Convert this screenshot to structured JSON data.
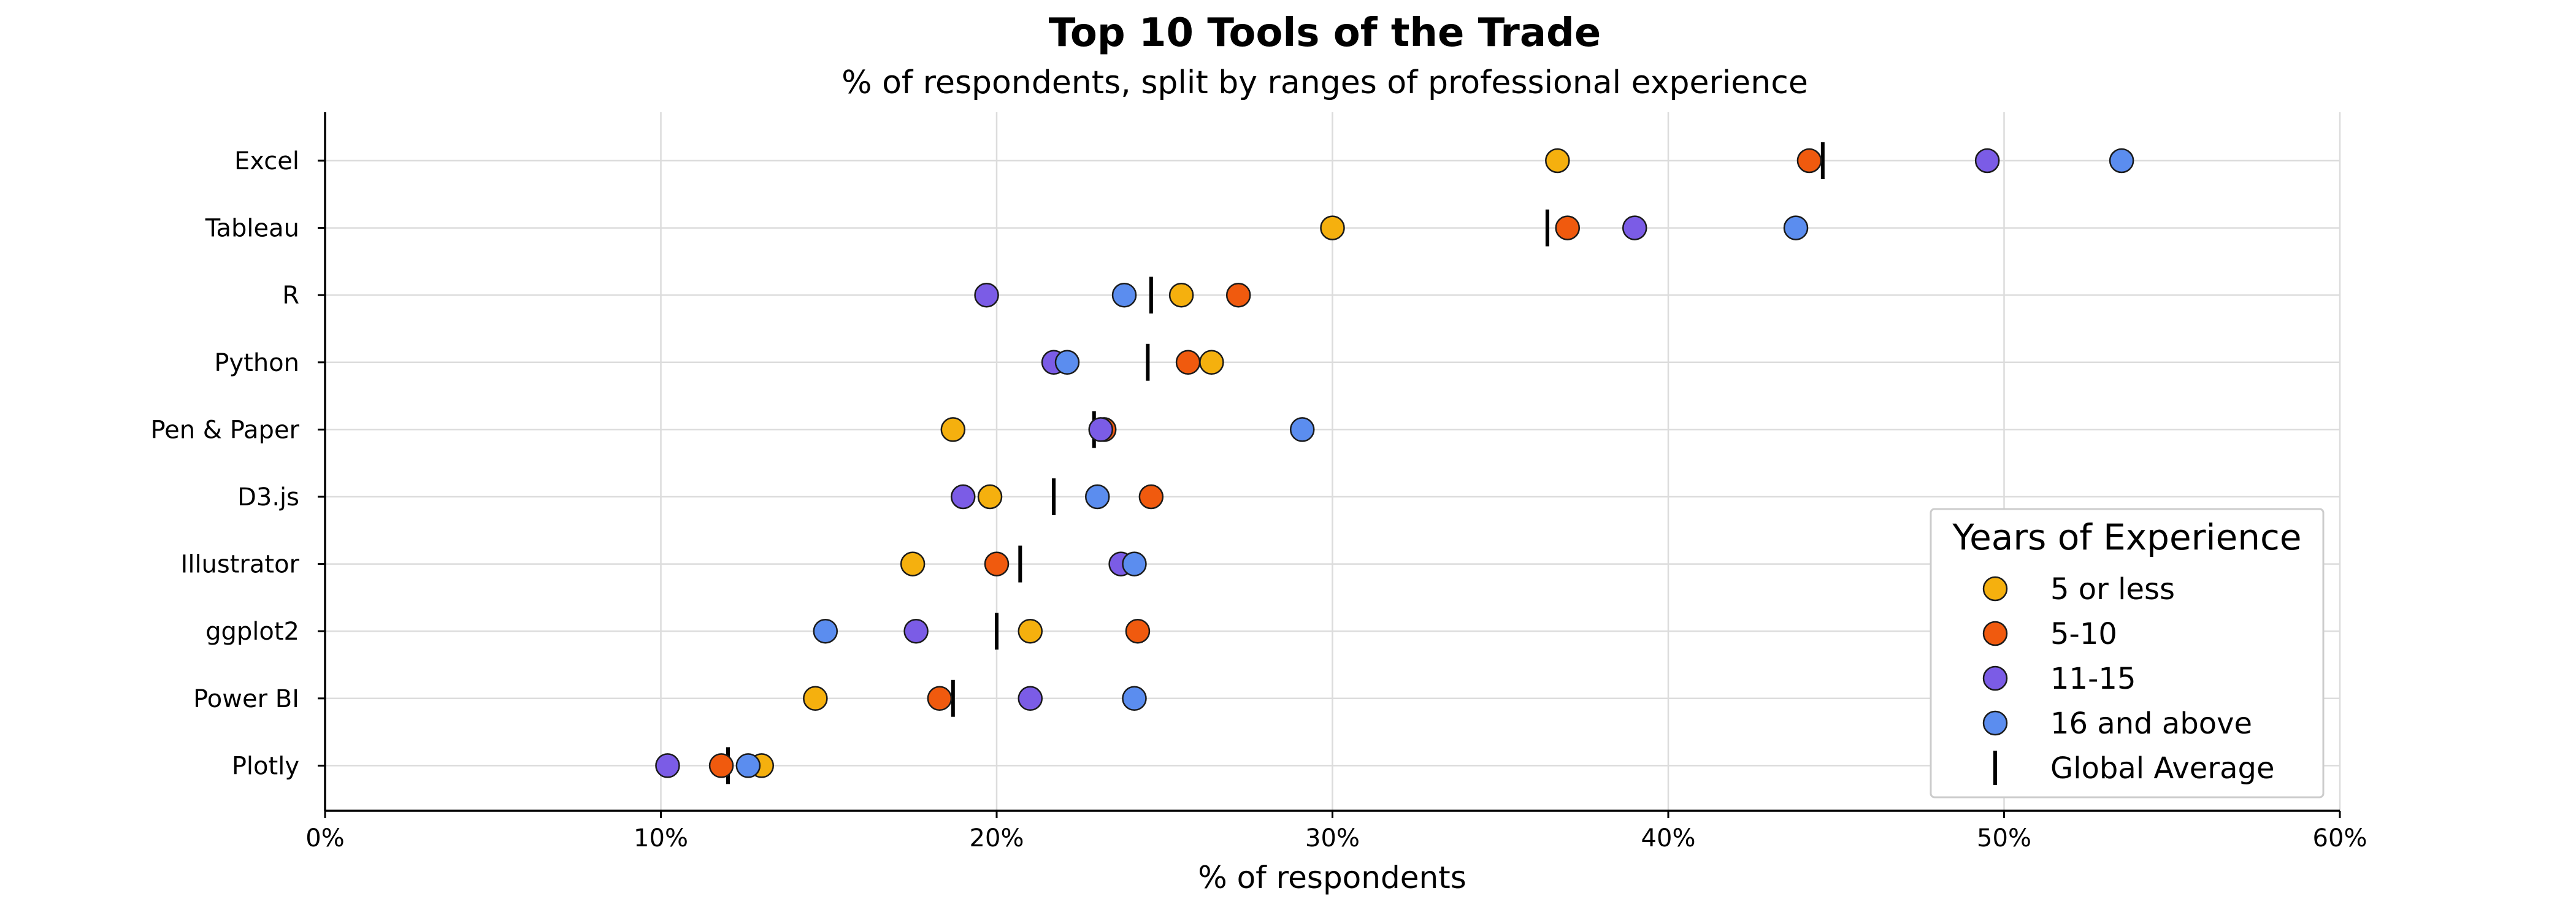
{
  "chart_data": {
    "type": "scatter",
    "title": "Top 10 Tools of the Trade",
    "subtitle": "% of respondents, split by ranges of professional experience",
    "xlabel": "% of respondents",
    "ylabel": "",
    "xlim": [
      0,
      60
    ],
    "x_ticks": [
      0,
      10,
      20,
      30,
      40,
      50,
      60
    ],
    "x_tick_labels": [
      "0%",
      "10%",
      "20%",
      "30%",
      "40%",
      "50%",
      "60%"
    ],
    "categories": [
      "Excel",
      "Tableau",
      "R",
      "Python",
      "Pen & Paper",
      "D3.js",
      "Illustrator",
      "ggplot2",
      "Power BI",
      "Plotly"
    ],
    "grid": true,
    "series": [
      {
        "name": "5 or less",
        "color": "#F5B00E",
        "values": [
          36.7,
          30.0,
          25.5,
          26.4,
          18.7,
          19.8,
          17.5,
          21.0,
          14.6,
          13.0
        ]
      },
      {
        "name": "5-10",
        "color": "#F05A0E",
        "values": [
          44.2,
          37.0,
          27.2,
          25.7,
          23.2,
          24.6,
          20.0,
          24.2,
          18.3,
          11.8
        ]
      },
      {
        "name": "11-15",
        "color": "#7B5CE6",
        "values": [
          49.5,
          39.0,
          19.7,
          21.7,
          23.1,
          19.0,
          23.7,
          17.6,
          21.0,
          10.2
        ]
      },
      {
        "name": "16 and above",
        "color": "#5B8DEF",
        "values": [
          53.5,
          43.8,
          23.8,
          22.1,
          29.1,
          23.0,
          24.1,
          14.9,
          24.1,
          12.6
        ]
      }
    ],
    "global_average": {
      "name": "Global Average",
      "values": [
        44.6,
        36.4,
        24.6,
        24.5,
        22.9,
        21.7,
        20.7,
        20.0,
        18.7,
        12.0
      ]
    },
    "legend": {
      "title": "Years of Experience",
      "placement": "lower-right"
    }
  }
}
